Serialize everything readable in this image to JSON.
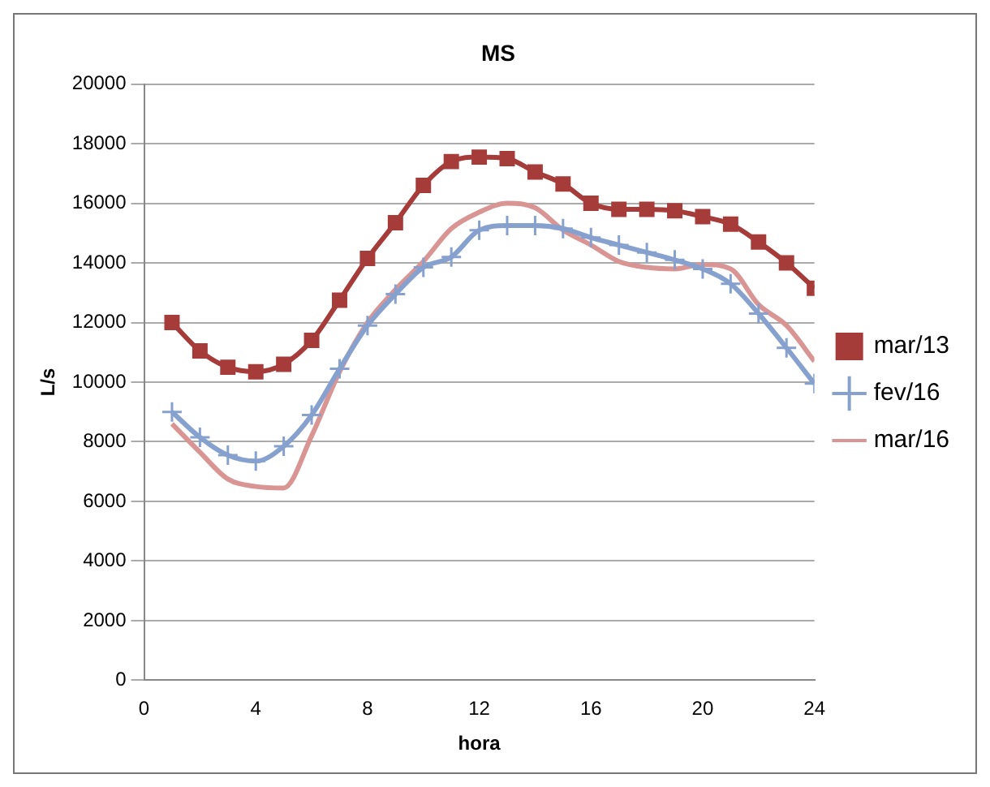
{
  "chart_data": {
    "type": "line",
    "title": "MS",
    "xlabel": "hora",
    "ylabel": "L/s",
    "x": [
      1,
      2,
      3,
      4,
      5,
      6,
      7,
      8,
      9,
      10,
      11,
      12,
      13,
      14,
      15,
      16,
      17,
      18,
      19,
      20,
      21,
      22,
      23,
      24
    ],
    "xlim": [
      0,
      24
    ],
    "xticks": [
      0,
      4,
      8,
      12,
      16,
      20,
      24
    ],
    "ylim": [
      0,
      20000
    ],
    "yticks": [
      0,
      2000,
      4000,
      6000,
      8000,
      10000,
      12000,
      14000,
      16000,
      18000,
      20000
    ],
    "grid": "y",
    "legend": "right",
    "series": [
      {
        "name": "mar/13",
        "color": "#a63c3a",
        "marker": "square",
        "values": [
          12000,
          11050,
          10500,
          10350,
          10600,
          11400,
          12750,
          14150,
          15350,
          16600,
          17400,
          17550,
          17500,
          17050,
          16650,
          16000,
          15800,
          15800,
          15750,
          15550,
          15300,
          14700,
          14000,
          13150
        ]
      },
      {
        "name": "fev/16",
        "color": "#87a1cf",
        "marker": "cross",
        "values": [
          9000,
          8150,
          7550,
          7350,
          7850,
          8900,
          10450,
          11900,
          12950,
          13850,
          14200,
          15100,
          15250,
          15250,
          15150,
          14850,
          14600,
          14350,
          14100,
          13800,
          13300,
          12300,
          11150,
          9950
        ]
      },
      {
        "name": "mar/16",
        "color": "#d99594",
        "marker": "none",
        "values": [
          8600,
          7650,
          6750,
          6500,
          6450,
          8200,
          10350,
          12000,
          13100,
          14050,
          15150,
          15700,
          16000,
          15850,
          15100,
          14600,
          14050,
          13850,
          13800,
          13950,
          13800,
          12600,
          11900,
          10700
        ]
      }
    ]
  }
}
